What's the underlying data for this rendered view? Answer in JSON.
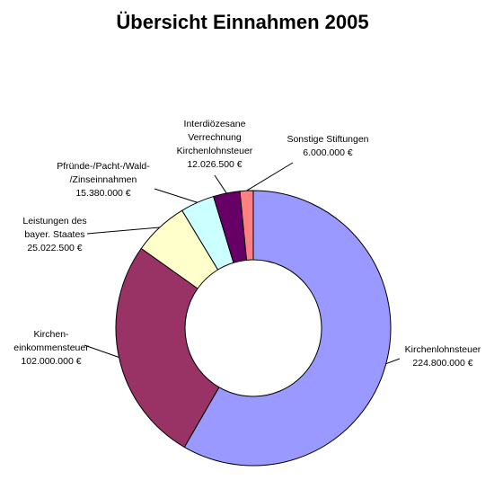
{
  "chart_data": {
    "type": "pie",
    "variant": "donut",
    "title": "Übersicht Einnahmen 2005",
    "slices": [
      {
        "name": "Kirchenlohnsteuer",
        "value": 224800000,
        "value_label": "224.800.000 €",
        "label_lines": [
          "Kirchenlohnsteuer",
          "224.800.000 €"
        ],
        "color": "#9999FF"
      },
      {
        "name": "Kirchen-einkommensteuer",
        "value": 102000000,
        "value_label": "102.000.000 €",
        "label_lines": [
          "Kirchen-",
          "einkommensteuer",
          "102.000.000 €"
        ],
        "color": "#993366"
      },
      {
        "name": "Leistungen des bayer. Staates",
        "value": 25022500,
        "value_label": "25.022.500 €",
        "label_lines": [
          "Leistungen des",
          "bayer. Staates",
          "25.022.500 €"
        ],
        "color": "#FFFFCC"
      },
      {
        "name": "Pfründe-/Pacht-/Wald-/Zinseinnahmen",
        "value": 15380000,
        "value_label": "15.380.000 €",
        "label_lines": [
          "Pfründe-/Pacht-/Wald-",
          "/Zinseinnahmen",
          "15.380.000 €"
        ],
        "color": "#CCFFFF"
      },
      {
        "name": "Interdiözesane Verrechnung Kirchenlohnsteuer",
        "value": 12026500,
        "value_label": "12.026.500 €",
        "label_lines": [
          "Interdiözesane",
          "Verrechnung",
          "Kirchenlohnsteuer",
          "12.026.500 €"
        ],
        "color": "#660066"
      },
      {
        "name": "Sonstige Stiftungen",
        "value": 6000000,
        "value_label": "6.000.000 €",
        "label_lines": [
          "Sonstige Stiftungen",
          "6.000.000 €"
        ],
        "color": "#FF8080"
      }
    ],
    "legend": "none",
    "data_labels": "outside with leader lines"
  }
}
